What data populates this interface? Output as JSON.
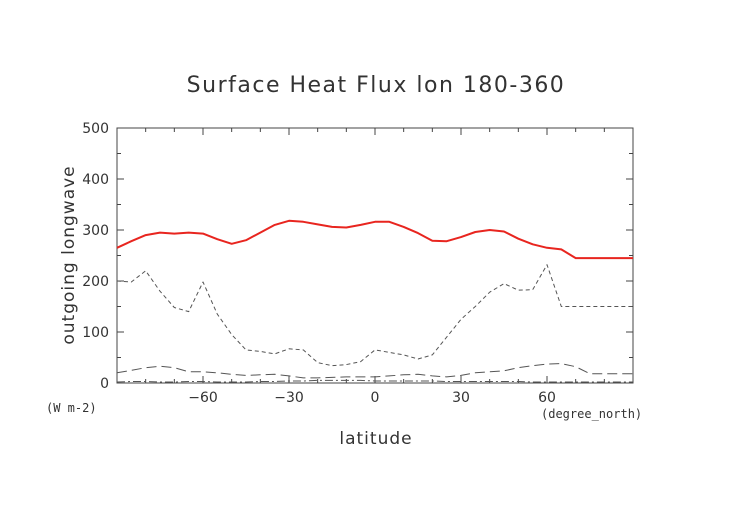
{
  "chart_data": {
    "type": "line",
    "title": "Surface Heat Flux lon 180-360",
    "xlabel": "latitude",
    "ylabel": "outgoing longwave",
    "y_units": "(W m-2)",
    "x_units": "(degree_north)",
    "xlim": [
      -90,
      90
    ],
    "ylim": [
      0,
      500
    ],
    "x_ticks": [
      -60,
      -30,
      0,
      30,
      60
    ],
    "x_tick_labels": [
      "-60",
      "-30",
      "0",
      "30",
      "60"
    ],
    "y_ticks": [
      0,
      100,
      200,
      300,
      400,
      500
    ],
    "y_tick_labels": [
      "0",
      "100",
      "200",
      "300",
      "400",
      "500"
    ],
    "grid": false,
    "colors": {
      "main": "#e8251f",
      "secondary": "#555555",
      "axis": "#444444"
    },
    "series": [
      {
        "style": "solid",
        "x": [
          -90,
          -85,
          -80,
          -75,
          -70,
          -65,
          -60,
          -55,
          -50,
          -45,
          -40,
          -35,
          -30,
          -25,
          -20,
          -15,
          -10,
          -5,
          0,
          5,
          10,
          15,
          20,
          25,
          30,
          35,
          40,
          45,
          50,
          55,
          60,
          65,
          70,
          75,
          80,
          85,
          90
        ],
        "values": [
          265,
          278,
          290,
          295,
          293,
          295,
          293,
          282,
          273,
          280,
          295,
          310,
          318,
          316,
          311,
          306,
          305,
          310,
          316,
          316,
          306,
          294,
          279,
          278,
          286,
          296,
          300,
          297,
          283,
          272,
          265,
          262,
          245,
          245,
          245,
          245,
          245
        ]
      },
      {
        "style": "dashed",
        "x": [
          -90,
          -85,
          -80,
          -75,
          -70,
          -65,
          -60,
          -55,
          -50,
          -45,
          -40,
          -35,
          -30,
          -25,
          -20,
          -15,
          -10,
          -5,
          0,
          5,
          10,
          15,
          20,
          25,
          30,
          35,
          40,
          45,
          50,
          55,
          60,
          65,
          70,
          75,
          80,
          85,
          90
        ],
        "values": [
          200,
          198,
          220,
          180,
          148,
          140,
          198,
          135,
          95,
          65,
          62,
          57,
          67,
          65,
          40,
          34,
          36,
          42,
          65,
          60,
          55,
          47,
          55,
          90,
          125,
          150,
          178,
          195,
          182,
          183,
          232,
          150,
          150,
          150,
          150,
          150,
          150
        ]
      },
      {
        "style": "long-dash",
        "x": [
          -90,
          -85,
          -80,
          -75,
          -70,
          -65,
          -60,
          -55,
          -50,
          -45,
          -40,
          -35,
          -30,
          -25,
          -20,
          -15,
          -10,
          -5,
          0,
          5,
          10,
          15,
          20,
          25,
          30,
          35,
          40,
          45,
          50,
          55,
          60,
          65,
          70,
          75,
          80,
          85,
          90
        ],
        "values": [
          20,
          25,
          30,
          33,
          30,
          22,
          22,
          20,
          17,
          15,
          16,
          17,
          14,
          10,
          10,
          11,
          12,
          12,
          12,
          14,
          16,
          17,
          14,
          12,
          15,
          20,
          22,
          24,
          30,
          34,
          37,
          38,
          32,
          18,
          18,
          18,
          18
        ]
      },
      {
        "style": "dash-dot",
        "x": [
          -90,
          -85,
          -80,
          -75,
          -70,
          -65,
          -60,
          -55,
          -50,
          -45,
          -40,
          -35,
          -30,
          -25,
          -20,
          -15,
          -10,
          -5,
          0,
          5,
          10,
          15,
          20,
          25,
          30,
          35,
          40,
          45,
          50,
          55,
          60,
          65,
          70,
          75,
          80,
          85,
          90
        ],
        "values": [
          2,
          3,
          3,
          2,
          2,
          3,
          3,
          2,
          2,
          2,
          3,
          3,
          4,
          4,
          5,
          5,
          5,
          5,
          4,
          4,
          4,
          4,
          4,
          3,
          3,
          3,
          3,
          3,
          3,
          2,
          2,
          2,
          2,
          2,
          2,
          2,
          2
        ]
      }
    ]
  }
}
